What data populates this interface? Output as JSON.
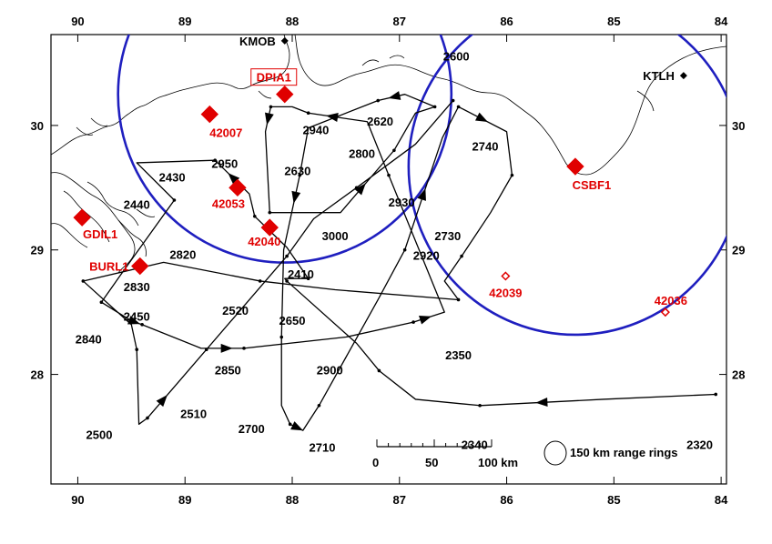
{
  "map": {
    "lon_ticks": [
      "90",
      "89",
      "88",
      "87",
      "86",
      "85",
      "84"
    ],
    "lat_ticks": [
      "30",
      "29",
      "28"
    ],
    "range_ring_radius_km": "150",
    "colors": {
      "ring": "#1f1fbf",
      "station": "#e00000",
      "track": "#000000",
      "coast": "#000000"
    }
  },
  "airports": [
    {
      "id": "kmob",
      "label": "KMOB",
      "lon": 88.07,
      "lat": 30.68
    },
    {
      "id": "ktlh",
      "label": "KTLH",
      "lon": 84.35,
      "lat": 30.4
    }
  ],
  "stations": [
    {
      "id": "dpia1",
      "label": "DPIA1",
      "lon": 88.07,
      "lat": 30.25,
      "boxed": true,
      "filled": true
    },
    {
      "id": "42007",
      "label": "42007",
      "lon": 88.77,
      "lat": 30.09,
      "filled": true
    },
    {
      "id": "42053",
      "label": "42053",
      "lon": 88.51,
      "lat": 29.5,
      "filled": true
    },
    {
      "id": "42040",
      "label": "42040",
      "lon": 88.21,
      "lat": 29.18,
      "filled": true
    },
    {
      "id": "gdil1",
      "label": "GDIL1",
      "lon": 89.96,
      "lat": 29.26,
      "filled": true
    },
    {
      "id": "burl1",
      "label": "BURL1",
      "lon": 89.42,
      "lat": 28.87,
      "filled": true
    },
    {
      "id": "csbf1",
      "label": "CSBF1",
      "lon": 85.36,
      "lat": 29.67,
      "filled": true
    },
    {
      "id": "42039",
      "label": "42039",
      "lon": 86.01,
      "lat": 28.79,
      "filled": false
    },
    {
      "id": "42036",
      "label": "42036",
      "lon": 84.52,
      "lat": 28.5,
      "filled": false
    }
  ],
  "range_rings": [
    {
      "center": "dpia1"
    },
    {
      "center": "csbf1"
    }
  ],
  "flight_track": [
    [
      84.05,
      27.84
    ],
    [
      85.1,
      27.8
    ],
    [
      86.25,
      27.75
    ],
    [
      86.85,
      27.8
    ],
    [
      87.19,
      28.03
    ],
    [
      87.4,
      28.25
    ],
    [
      88.05,
      28.75
    ],
    [
      88.07,
      28.77
    ],
    [
      87.85,
      28.77
    ],
    [
      88.05,
      29.02
    ],
    [
      88.35,
      29.27
    ],
    [
      88.4,
      29.45
    ],
    [
      88.72,
      29.72
    ],
    [
      89.45,
      29.7
    ],
    [
      89.1,
      29.4
    ],
    [
      89.6,
      28.8
    ],
    [
      89.78,
      28.58
    ],
    [
      89.5,
      28.43
    ],
    [
      89.4,
      28.4
    ],
    [
      88.85,
      28.21
    ],
    [
      88.45,
      28.21
    ],
    [
      87.5,
      28.3
    ],
    [
      86.87,
      28.42
    ],
    [
      86.58,
      28.5
    ],
    [
      87.1,
      29.6
    ],
    [
      87.3,
      30.03
    ],
    [
      87.85,
      30.1
    ],
    [
      88.0,
      30.15
    ],
    [
      88.2,
      30.15
    ],
    [
      88.25,
      29.95
    ],
    [
      88.21,
      29.3
    ],
    [
      87.55,
      29.3
    ],
    [
      87.05,
      29.8
    ],
    [
      86.85,
      30.1
    ],
    [
      86.67,
      30.15
    ],
    [
      86.95,
      30.25
    ],
    [
      87.2,
      30.2
    ],
    [
      87.85,
      29.98
    ],
    [
      87.93,
      29.6
    ],
    [
      88.08,
      29.0
    ],
    [
      88.1,
      28.3
    ],
    [
      88.1,
      27.75
    ],
    [
      88.02,
      27.6
    ],
    [
      87.9,
      27.55
    ],
    [
      87.75,
      27.75
    ],
    [
      87.2,
      28.6
    ],
    [
      86.95,
      29.0
    ],
    [
      86.6,
      29.9
    ],
    [
      86.45,
      30.15
    ],
    [
      86.0,
      29.95
    ],
    [
      85.95,
      29.6
    ],
    [
      86.15,
      29.3
    ],
    [
      86.42,
      28.95
    ],
    [
      86.58,
      28.75
    ],
    [
      86.45,
      28.6
    ],
    [
      87.6,
      28.68
    ],
    [
      88.3,
      28.75
    ],
    [
      89.2,
      28.9
    ],
    [
      89.95,
      28.75
    ],
    [
      89.5,
      28.4
    ],
    [
      89.45,
      28.2
    ],
    [
      89.43,
      27.6
    ],
    [
      89.35,
      27.65
    ],
    [
      89.05,
      27.95
    ],
    [
      88.8,
      28.2
    ],
    [
      88.5,
      28.5
    ],
    [
      88.05,
      28.95
    ],
    [
      87.8,
      29.25
    ],
    [
      87.4,
      29.5
    ],
    [
      86.85,
      29.85
    ],
    [
      86.5,
      30.2
    ]
  ],
  "arrows": [
    {
      "seg": 1,
      "t": 0.5
    },
    {
      "seg": 11,
      "t": 0.5
    },
    {
      "seg": 17,
      "t": 0.3
    },
    {
      "seg": 19,
      "t": 0.6
    },
    {
      "seg": 22,
      "t": 0.4
    },
    {
      "seg": 25,
      "t": 0.6
    },
    {
      "seg": 28,
      "t": 0.5
    },
    {
      "seg": 31,
      "t": 0.4
    },
    {
      "seg": 35,
      "t": 0.4
    },
    {
      "seg": 38,
      "t": 0.3
    },
    {
      "seg": 42,
      "t": 0.6
    },
    {
      "seg": 46,
      "t": 0.5
    },
    {
      "seg": 48,
      "t": 0.5
    },
    {
      "seg": 62,
      "t": 0.5
    }
  ],
  "time_labels": [
    {
      "t": "2600",
      "lon": 86.47,
      "lat": 30.52
    },
    {
      "t": "2620",
      "lon": 87.18,
      "lat": 30.0
    },
    {
      "t": "2940",
      "lon": 87.78,
      "lat": 29.93
    },
    {
      "t": "2800",
      "lon": 87.35,
      "lat": 29.74
    },
    {
      "t": "2740",
      "lon": 86.2,
      "lat": 29.8
    },
    {
      "t": "2950",
      "lon": 88.63,
      "lat": 29.66
    },
    {
      "t": "2630",
      "lon": 87.95,
      "lat": 29.6
    },
    {
      "t": "2430",
      "lon": 89.12,
      "lat": 29.55
    },
    {
      "t": "2930",
      "lon": 86.98,
      "lat": 29.35
    },
    {
      "t": "2440",
      "lon": 89.45,
      "lat": 29.33
    },
    {
      "t": "3000",
      "lon": 87.6,
      "lat": 29.08
    },
    {
      "t": "2730",
      "lon": 86.55,
      "lat": 29.08
    },
    {
      "t": "2820",
      "lon": 89.02,
      "lat": 28.93
    },
    {
      "t": "2920",
      "lon": 86.75,
      "lat": 28.92
    },
    {
      "t": "2410",
      "lon": 87.92,
      "lat": 28.77
    },
    {
      "t": "2830",
      "lon": 89.45,
      "lat": 28.67
    },
    {
      "t": "2450",
      "lon": 89.45,
      "lat": 28.43
    },
    {
      "t": "2520",
      "lon": 88.53,
      "lat": 28.48
    },
    {
      "t": "2650",
      "lon": 88.0,
      "lat": 28.4
    },
    {
      "t": "2840",
      "lon": 89.9,
      "lat": 28.25
    },
    {
      "t": "2350",
      "lon": 86.45,
      "lat": 28.12
    },
    {
      "t": "2850",
      "lon": 88.6,
      "lat": 28.0
    },
    {
      "t": "2900",
      "lon": 87.65,
      "lat": 28.0
    },
    {
      "t": "2510",
      "lon": 88.92,
      "lat": 27.65
    },
    {
      "t": "2700",
      "lon": 88.38,
      "lat": 27.53
    },
    {
      "t": "2500",
      "lon": 89.8,
      "lat": 27.48
    },
    {
      "t": "2710",
      "lon": 87.72,
      "lat": 27.38
    },
    {
      "t": "2340",
      "lon": 86.3,
      "lat": 27.4
    },
    {
      "t": "2320",
      "lon": 84.2,
      "lat": 27.4
    }
  ],
  "scale_bar": {
    "labels": [
      "0",
      "50",
      "100 km"
    ],
    "ring_legend": "150 km range rings"
  }
}
